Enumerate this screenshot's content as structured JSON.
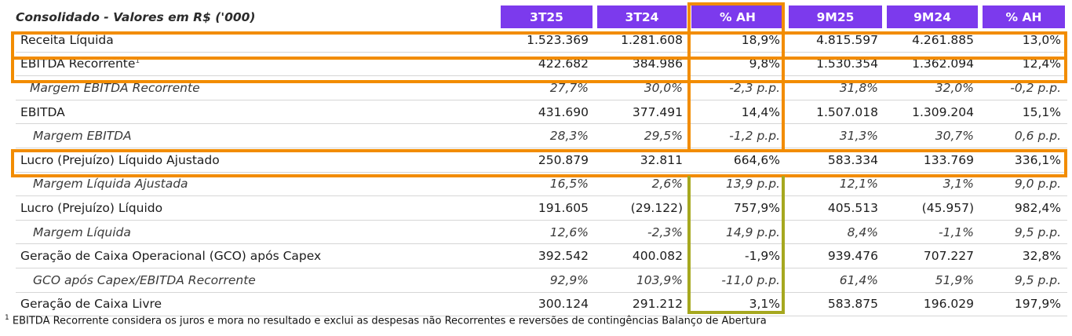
{
  "table": {
    "title": "Consolidado - Valores em R$ ('000)",
    "columns": [
      "3T25",
      "3T24",
      "% AH",
      "9M25",
      "9M24",
      "% AH"
    ],
    "rows": [
      {
        "label": "Receita Líquida",
        "sup": "",
        "values": [
          "1.523.369",
          "1.281.608",
          "18,9%",
          "4.815.597",
          "4.261.885",
          "13,0%"
        ]
      },
      {
        "label": "EBITDA Recorrente",
        "sup": "1",
        "values": [
          "422.682",
          "384.986",
          "9,8%",
          "1.530.354",
          "1.362.094",
          "12,4%"
        ]
      },
      {
        "label": "Margem EBITDA Recorrente",
        "sup": "",
        "values": [
          "27,7%",
          "30,0%",
          "-2,3 p.p.",
          "31,8%",
          "32,0%",
          "-0,2 p.p."
        ]
      },
      {
        "label": "EBITDA",
        "sup": "",
        "values": [
          "431.690",
          "377.491",
          "14,4%",
          "1.507.018",
          "1.309.204",
          "15,1%"
        ]
      },
      {
        "label": "Margem EBITDA",
        "sup": "",
        "values": [
          "28,3%",
          "29,5%",
          "-1,2 p.p.",
          "31,3%",
          "30,7%",
          "0,6 p.p."
        ]
      },
      {
        "label": "Lucro (Prejuízo) Líquido Ajustado",
        "sup": "",
        "values": [
          "250.879",
          "32.811",
          "664,6%",
          "583.334",
          "133.769",
          "336,1%"
        ]
      },
      {
        "label": "Margem Líquida Ajustada",
        "sup": "",
        "values": [
          "16,5%",
          "2,6%",
          "13,9 p.p.",
          "12,1%",
          "3,1%",
          "9,0 p.p."
        ]
      },
      {
        "label": "Lucro (Prejuízo) Líquido",
        "sup": "",
        "values": [
          "191.605",
          "(29.122)",
          "757,9%",
          "405.513",
          "(45.957)",
          "982,4%"
        ]
      },
      {
        "label": "Margem Líquida",
        "sup": "",
        "values": [
          "12,6%",
          "-2,3%",
          "14,9 p.p.",
          "8,4%",
          "-1,1%",
          "9,5 p.p."
        ]
      },
      {
        "label": "Geração de Caixa Operacional (GCO) após Capex",
        "sup": "",
        "values": [
          "392.542",
          "400.082",
          "-1,9%",
          "939.476",
          "707.227",
          "32,8%"
        ]
      },
      {
        "label": "GCO após Capex/EBITDA Recorrente",
        "sup": "",
        "values": [
          "92,9%",
          "103,9%",
          "-11,0 p.p.",
          "61,4%",
          "51,9%",
          "9,5 p.p."
        ]
      },
      {
        "label": "Geração de Caixa Livre",
        "sup": "",
        "values": [
          "300.124",
          "291.212",
          "3,1%",
          "583.875",
          "196.029",
          "197,9%"
        ]
      }
    ]
  },
  "footnote": {
    "marker": "1",
    "text": "EBITDA Recorrente considera os juros e mora no resultado e exclui as despesas não Recorrentes e reversões de contingências Balanço de Abertura"
  },
  "colors": {
    "header_bg": "#7c3aed",
    "highlight_orange": "#f28c00",
    "highlight_olive": "#9aa21b"
  }
}
